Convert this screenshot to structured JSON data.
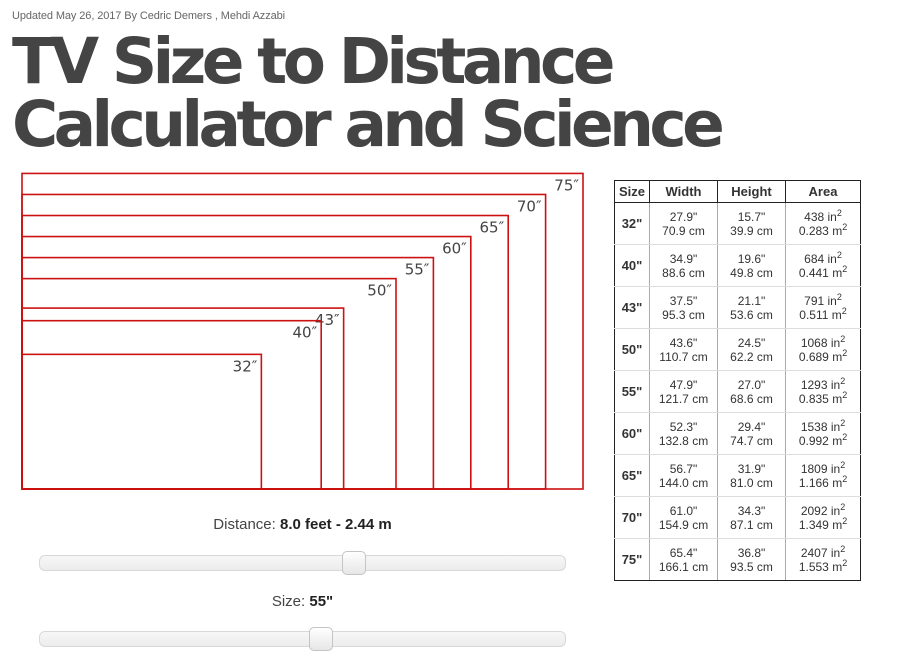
{
  "meta": {
    "updated": "Updated May 26, 2017 By Cedric Demers , Mehdi Azzabi"
  },
  "title": {
    "line1": "TV Size to Distance",
    "line2": "Calculator and Science"
  },
  "colors": {
    "outline": "#cc1111",
    "label": "#444444"
  },
  "diagram": {
    "sizes": [
      "75″",
      "70″",
      "65″",
      "60″",
      "55″",
      "50″",
      "43″",
      "40″",
      "32″"
    ],
    "diagonals_in": [
      75,
      70,
      65,
      60,
      55,
      50,
      43,
      40,
      32
    ]
  },
  "controls": {
    "distance_prefix": "Distance: ",
    "distance_value": "8.0 feet - 2.44 m",
    "distance_fraction": 0.6,
    "size_prefix": "Size: ",
    "size_value": "55\"",
    "size_fraction": 0.535
  },
  "table": {
    "headers": [
      "Size",
      "Width",
      "Height",
      "Area"
    ],
    "rows": [
      {
        "size": "32\"",
        "w_in": "27.9\"",
        "w_cm": "70.9 cm",
        "h_in": "15.7\"",
        "h_cm": "39.9 cm",
        "a_in": "438 in",
        "a_m": "0.283 m"
      },
      {
        "size": "40\"",
        "w_in": "34.9\"",
        "w_cm": "88.6 cm",
        "h_in": "19.6\"",
        "h_cm": "49.8 cm",
        "a_in": "684 in",
        "a_m": "0.441 m"
      },
      {
        "size": "43\"",
        "w_in": "37.5\"",
        "w_cm": "95.3 cm",
        "h_in": "21.1\"",
        "h_cm": "53.6 cm",
        "a_in": "791 in",
        "a_m": "0.511 m"
      },
      {
        "size": "50\"",
        "w_in": "43.6\"",
        "w_cm": "110.7 cm",
        "h_in": "24.5\"",
        "h_cm": "62.2 cm",
        "a_in": "1068 in",
        "a_m": "0.689 m"
      },
      {
        "size": "55\"",
        "w_in": "47.9\"",
        "w_cm": "121.7 cm",
        "h_in": "27.0\"",
        "h_cm": "68.6 cm",
        "a_in": "1293 in",
        "a_m": "0.835 m"
      },
      {
        "size": "60\"",
        "w_in": "52.3\"",
        "w_cm": "132.8 cm",
        "h_in": "29.4\"",
        "h_cm": "74.7 cm",
        "a_in": "1538 in",
        "a_m": "0.992 m"
      },
      {
        "size": "65\"",
        "w_in": "56.7\"",
        "w_cm": "144.0 cm",
        "h_in": "31.9\"",
        "h_cm": "81.0 cm",
        "a_in": "1809 in",
        "a_m": "1.166 m"
      },
      {
        "size": "70\"",
        "w_in": "61.0\"",
        "w_cm": "154.9 cm",
        "h_in": "34.3\"",
        "h_cm": "87.1 cm",
        "a_in": "2092 in",
        "a_m": "1.349 m"
      },
      {
        "size": "75\"",
        "w_in": "65.4\"",
        "w_cm": "166.1 cm",
        "h_in": "36.8\"",
        "h_cm": "93.5 cm",
        "a_in": "2407 in",
        "a_m": "1.553 m"
      }
    ],
    "superscript": "2"
  }
}
